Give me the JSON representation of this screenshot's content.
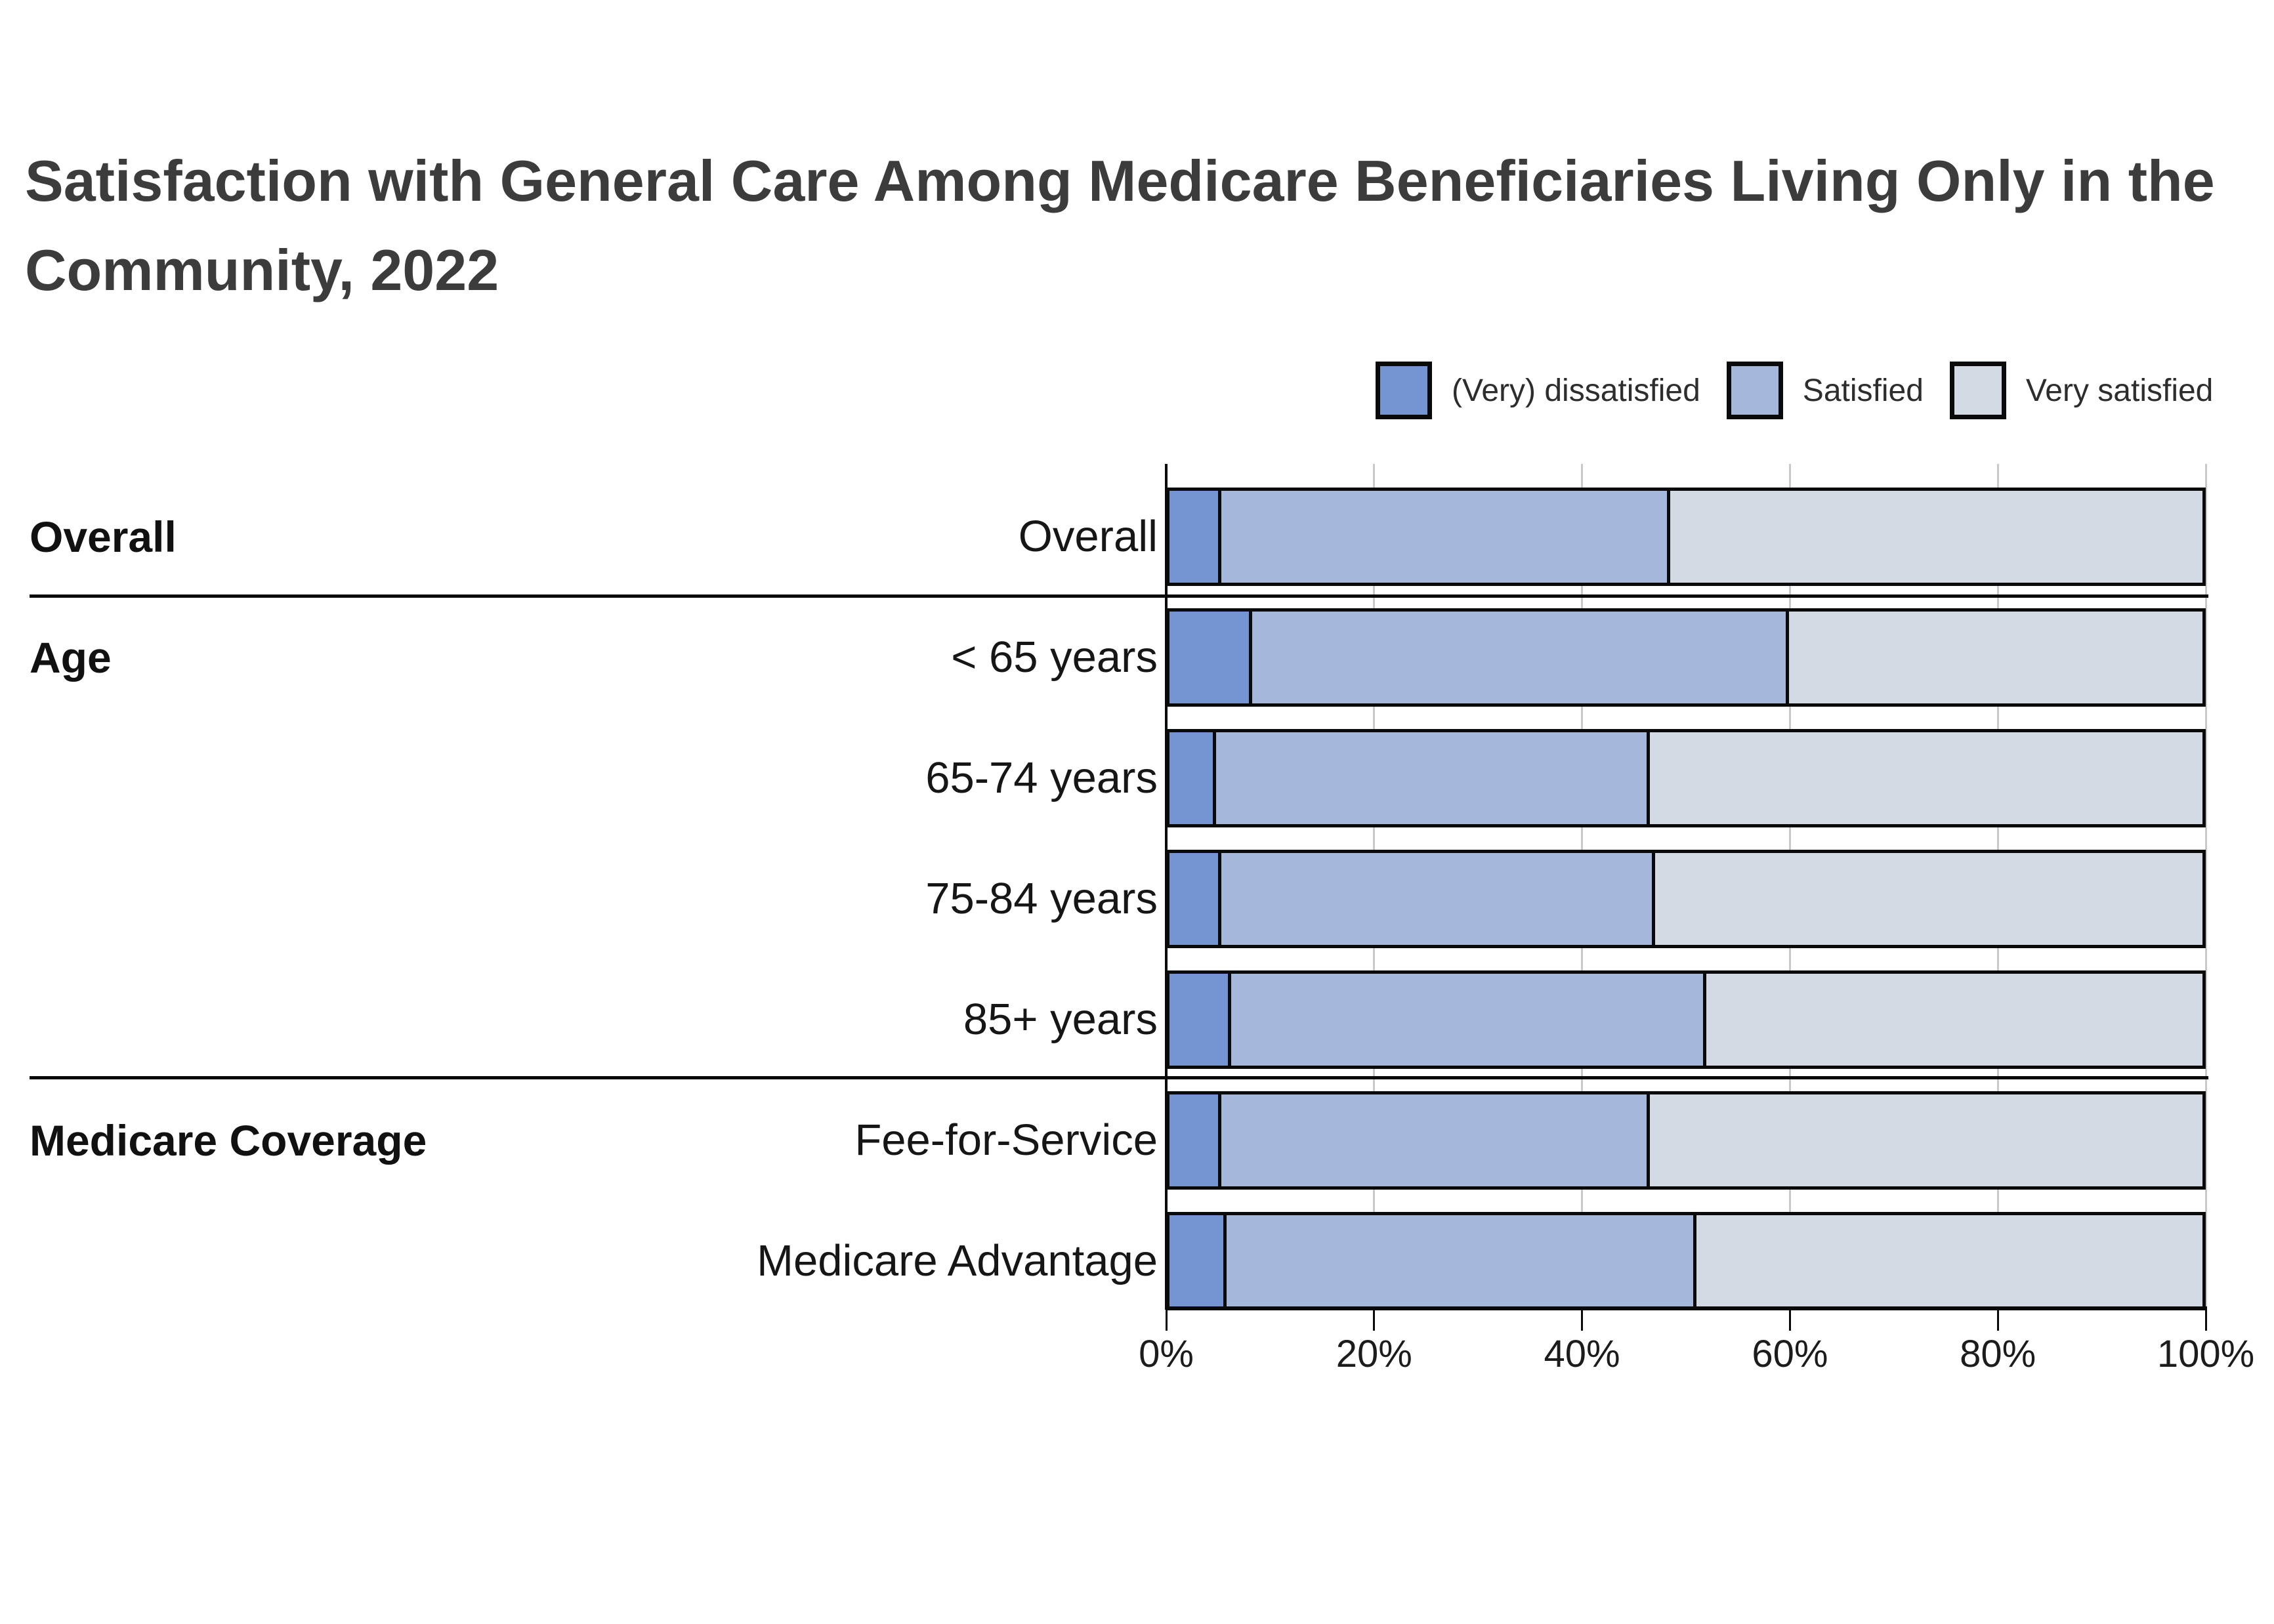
{
  "title": {
    "line1": "Satisfaction with General Care Among Medicare Beneficiaries Living Only in the",
    "line2": "Community, 2022",
    "full": "Satisfaction with General Care Among Medicare Beneficiaries Living Only in the Community, 2022"
  },
  "legend": {
    "items": [
      {
        "label": "(Very) dissatisfied",
        "color": "#7595d2"
      },
      {
        "label": "Satisfied",
        "color": "#a5b8dc"
      },
      {
        "label": "Very satisfied",
        "color": "#d4dae4"
      }
    ]
  },
  "sections": [
    {
      "label": "Overall",
      "rows": [
        "Overall"
      ]
    },
    {
      "label": "Age",
      "rows": [
        "< 65 years",
        "65-74 years",
        "75-84 years",
        "85+ years"
      ]
    },
    {
      "label": "Medicare Coverage",
      "rows": [
        "Fee-for-Service",
        "Medicare Advantage"
      ]
    }
  ],
  "x_axis": {
    "tick_labels": [
      "0%",
      "20%",
      "40%",
      "60%",
      "80%",
      "100%"
    ],
    "tick_values": [
      0,
      20,
      40,
      60,
      80,
      100
    ]
  },
  "colors": {
    "dissatisfied": "#7595d2",
    "satisfied": "#a5b8dc",
    "very_satisfied": "#d4dae4",
    "bar_border": "#0a0a0a",
    "gridline": "#c9c9c9",
    "title_text": "#3c3c3c",
    "label_text": "#161616"
  },
  "chart_data": {
    "type": "bar",
    "orientation": "horizontal",
    "stacked": true,
    "title": "Satisfaction with General Care Among Medicare Beneficiaries Living Only in the Community, 2022",
    "categories": [
      "Overall",
      "< 65 years",
      "65-74 years",
      "75-84 years",
      "85+ years",
      "Fee-for-Service",
      "Medicare Advantage"
    ],
    "category_groups": [
      {
        "label": "Overall",
        "categories": [
          "Overall"
        ]
      },
      {
        "label": "Age",
        "categories": [
          "< 65 years",
          "65-74 years",
          "75-84 years",
          "85+ years"
        ]
      },
      {
        "label": "Medicare Coverage",
        "categories": [
          "Fee-for-Service",
          "Medicare Advantage"
        ]
      }
    ],
    "series": [
      {
        "name": "(Very) dissatisfied",
        "values": [
          5,
          8,
          4.5,
          5,
          6,
          5,
          5.5
        ]
      },
      {
        "name": "Satisfied",
        "values": [
          43.5,
          52,
          42,
          42,
          46,
          41.5,
          45.5
        ]
      },
      {
        "name": "Very satisfied",
        "values": [
          51.5,
          40,
          53.5,
          53,
          48,
          53.5,
          49
        ]
      }
    ],
    "xlabel": "",
    "ylabel": "",
    "xlim": [
      0,
      100
    ],
    "x_ticks": [
      "0%",
      "20%",
      "40%",
      "60%",
      "80%",
      "100%"
    ],
    "units": "percent",
    "legend_position": "top-right",
    "grid": "vertical"
  }
}
